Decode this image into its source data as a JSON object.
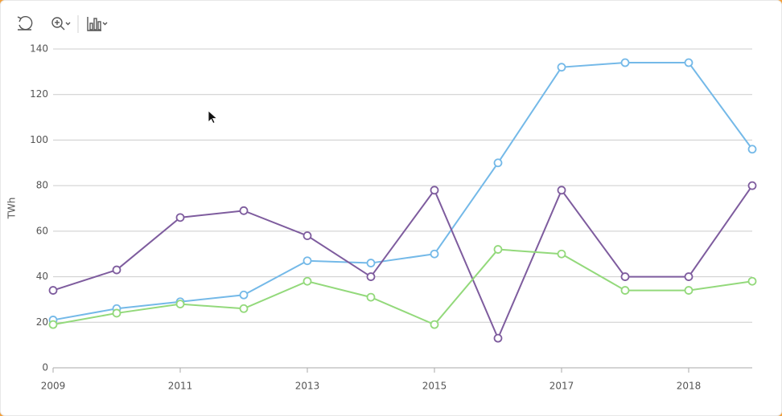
{
  "chart_data": {
    "type": "line",
    "y_label": "TWh",
    "categories": [
      "2009",
      null,
      "2011",
      null,
      "2013",
      null,
      "2015",
      null,
      "2017",
      null,
      "2018",
      null
    ],
    "series": [
      {
        "color": "#74b9e8",
        "values": [
          21,
          26,
          29,
          32,
          47,
          46,
          50,
          90,
          132,
          134,
          134,
          96
        ]
      },
      {
        "color": "#7e5c9e",
        "values": [
          34,
          43,
          66,
          69,
          58,
          40,
          78,
          13,
          78,
          40,
          40,
          80
        ]
      },
      {
        "color": "#93d97b",
        "values": [
          19,
          24,
          28,
          26,
          38,
          31,
          19,
          52,
          50,
          34,
          34,
          38
        ]
      }
    ],
    "ylim": [
      0,
      140
    ],
    "yticks": [
      0,
      20,
      40,
      60,
      80,
      100,
      120,
      140
    ],
    "grid": true
  }
}
